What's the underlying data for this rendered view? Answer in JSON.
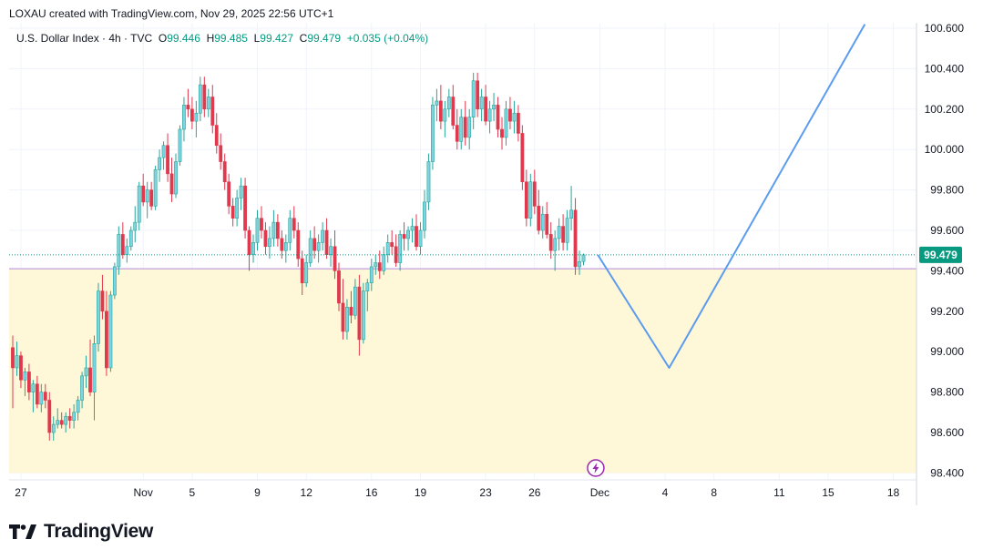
{
  "header": {
    "text": "LOXAU created with TradingView.com, Nov 29, 2025 22:56 UTC+1"
  },
  "legend": {
    "symbol": "U.S. Dollar Index · 4h · TVC",
    "o_label": "O",
    "o_value": "99.446",
    "h_label": "H",
    "h_value": "99.485",
    "l_label": "L",
    "l_value": "99.427",
    "c_label": "C",
    "c_value": "99.479",
    "change": "+0.035 (+0.04%)"
  },
  "footer": {
    "brand": "TradingView"
  },
  "colors": {
    "up": "#26a69a",
    "up_body": "#7fd3e0",
    "down": "#e0394e",
    "zone": "#fff8d8",
    "projection": "#5b9cf0",
    "zone_line": "#b187e0",
    "price_line": "#089981",
    "alert_icon": "#9c27b0"
  },
  "chart_data": {
    "type": "candlestick",
    "timeframe": "4h",
    "ylim": [
      98.35,
      100.7
    ],
    "yticks": [
      100.6,
      100.4,
      100.2,
      100.0,
      99.8,
      99.6,
      99.4,
      99.2,
      99.0,
      98.8,
      98.6,
      98.4
    ],
    "ytick_labels": [
      "100.600",
      "100.400",
      "100.200",
      "100.000",
      "99.800",
      "99.600",
      "99.400",
      "99.200",
      "99.000",
      "98.800",
      "98.600",
      "98.400"
    ],
    "xticks": [
      {
        "label": "27",
        "i": 2
      },
      {
        "label": "Nov",
        "i": 32
      },
      {
        "label": "5",
        "i": 44
      },
      {
        "label": "9",
        "i": 60
      },
      {
        "label": "12",
        "i": 72
      },
      {
        "label": "16",
        "i": 88
      },
      {
        "label": "19",
        "i": 100
      },
      {
        "label": "23",
        "i": 116
      },
      {
        "label": "26",
        "i": 128
      },
      {
        "label": "Dec",
        "i": 144
      },
      {
        "label": "4",
        "i": 160
      },
      {
        "label": "8",
        "i": 172
      },
      {
        "label": "11",
        "i": 188
      },
      {
        "label": "15",
        "i": 200
      },
      {
        "label": "18",
        "i": 216
      }
    ],
    "last_price": 99.479,
    "last_price_label": "99.479",
    "demand_zone": {
      "top": 99.41,
      "bottom": 98.4
    },
    "projection": [
      {
        "i": 143.5,
        "price": 99.479
      },
      {
        "i": 161,
        "price": 98.92
      },
      {
        "i": 209,
        "price": 100.62
      }
    ],
    "alert_icon_i": 143,
    "candles": [
      [
        99.02,
        99.08,
        98.72,
        98.92
      ],
      [
        98.92,
        99.05,
        98.88,
        98.98
      ],
      [
        98.98,
        99.0,
        98.82,
        98.86
      ],
      [
        98.86,
        98.92,
        98.78,
        98.9
      ],
      [
        98.9,
        98.94,
        98.76,
        98.8
      ],
      [
        98.8,
        98.86,
        98.7,
        98.84
      ],
      [
        98.84,
        98.88,
        98.72,
        98.74
      ],
      [
        98.74,
        98.84,
        98.7,
        98.8
      ],
      [
        98.8,
        98.84,
        98.72,
        98.76
      ],
      [
        98.76,
        98.8,
        98.56,
        98.6
      ],
      [
        98.6,
        98.68,
        98.56,
        98.64
      ],
      [
        98.64,
        98.72,
        98.62,
        98.66
      ],
      [
        98.66,
        98.7,
        98.62,
        98.64
      ],
      [
        98.64,
        98.7,
        98.6,
        98.68
      ],
      [
        98.68,
        98.72,
        98.62,
        98.66
      ],
      [
        98.66,
        98.74,
        98.62,
        98.7
      ],
      [
        98.7,
        98.78,
        98.66,
        98.76
      ],
      [
        98.76,
        98.9,
        98.72,
        98.88
      ],
      [
        98.88,
        98.98,
        98.82,
        98.92
      ],
      [
        98.92,
        99.06,
        98.78,
        98.8
      ],
      [
        98.8,
        99.08,
        98.66,
        99.04
      ],
      [
        99.04,
        99.34,
        99.0,
        99.3
      ],
      [
        99.3,
        99.38,
        99.16,
        99.2
      ],
      [
        99.2,
        99.3,
        98.88,
        98.92
      ],
      [
        98.92,
        99.3,
        98.9,
        99.28
      ],
      [
        99.28,
        99.44,
        99.26,
        99.42
      ],
      [
        99.42,
        99.62,
        99.38,
        99.58
      ],
      [
        99.58,
        99.64,
        99.46,
        99.48
      ],
      [
        99.48,
        99.56,
        99.44,
        99.52
      ],
      [
        99.52,
        99.62,
        99.5,
        99.6
      ],
      [
        99.6,
        99.72,
        99.54,
        99.64
      ],
      [
        99.64,
        99.84,
        99.6,
        99.82
      ],
      [
        99.82,
        99.88,
        99.72,
        99.74
      ],
      [
        99.74,
        99.84,
        99.66,
        99.8
      ],
      [
        99.8,
        99.84,
        99.7,
        99.72
      ],
      [
        99.72,
        99.92,
        99.7,
        99.9
      ],
      [
        99.9,
        100.0,
        99.84,
        99.96
      ],
      [
        99.96,
        100.04,
        99.9,
        100.02
      ],
      [
        100.02,
        100.08,
        99.84,
        99.88
      ],
      [
        99.88,
        99.96,
        99.74,
        99.78
      ],
      [
        99.78,
        99.98,
        99.76,
        99.94
      ],
      [
        99.94,
        100.12,
        99.92,
        100.1
      ],
      [
        100.1,
        100.26,
        100.04,
        100.22
      ],
      [
        100.22,
        100.3,
        100.16,
        100.2
      ],
      [
        100.2,
        100.26,
        100.1,
        100.14
      ],
      [
        100.14,
        100.24,
        100.06,
        100.18
      ],
      [
        100.18,
        100.36,
        100.14,
        100.32
      ],
      [
        100.32,
        100.36,
        100.16,
        100.2
      ],
      [
        100.2,
        100.3,
        100.16,
        100.26
      ],
      [
        100.26,
        100.32,
        100.08,
        100.12
      ],
      [
        100.12,
        100.18,
        99.98,
        100.02
      ],
      [
        100.02,
        100.08,
        99.9,
        99.94
      ],
      [
        99.94,
        99.98,
        99.8,
        99.84
      ],
      [
        99.84,
        99.88,
        99.68,
        99.72
      ],
      [
        99.72,
        99.76,
        99.62,
        99.66
      ],
      [
        99.66,
        99.8,
        99.62,
        99.76
      ],
      [
        99.76,
        99.86,
        99.7,
        99.82
      ],
      [
        99.82,
        99.86,
        99.56,
        99.6
      ],
      [
        99.6,
        99.62,
        99.4,
        99.48
      ],
      [
        99.48,
        99.58,
        99.44,
        99.54
      ],
      [
        99.54,
        99.7,
        99.5,
        99.66
      ],
      [
        99.66,
        99.72,
        99.56,
        99.6
      ],
      [
        99.6,
        99.64,
        99.48,
        99.52
      ],
      [
        99.52,
        99.62,
        99.46,
        99.56
      ],
      [
        99.56,
        99.7,
        99.52,
        99.64
      ],
      [
        99.64,
        99.68,
        99.52,
        99.56
      ],
      [
        99.56,
        99.6,
        99.46,
        99.5
      ],
      [
        99.5,
        99.58,
        99.44,
        99.54
      ],
      [
        99.54,
        99.7,
        99.5,
        99.66
      ],
      [
        99.66,
        99.72,
        99.56,
        99.6
      ],
      [
        99.6,
        99.64,
        99.42,
        99.46
      ],
      [
        99.46,
        99.5,
        99.28,
        99.34
      ],
      [
        99.34,
        99.48,
        99.32,
        99.44
      ],
      [
        99.44,
        99.6,
        99.42,
        99.56
      ],
      [
        99.56,
        99.62,
        99.46,
        99.5
      ],
      [
        99.5,
        99.58,
        99.44,
        99.54
      ],
      [
        99.54,
        99.64,
        99.5,
        99.6
      ],
      [
        99.6,
        99.66,
        99.46,
        99.48
      ],
      [
        99.48,
        99.56,
        99.42,
        99.52
      ],
      [
        99.52,
        99.6,
        99.36,
        99.4
      ],
      [
        99.4,
        99.44,
        99.2,
        99.24
      ],
      [
        99.24,
        99.36,
        99.06,
        99.1
      ],
      [
        99.1,
        99.26,
        99.06,
        99.22
      ],
      [
        99.22,
        99.3,
        99.14,
        99.18
      ],
      [
        99.18,
        99.36,
        99.16,
        99.32
      ],
      [
        99.32,
        99.38,
        98.98,
        99.06
      ],
      [
        99.06,
        99.34,
        99.04,
        99.3
      ],
      [
        99.3,
        99.36,
        99.2,
        99.34
      ],
      [
        99.34,
        99.46,
        99.3,
        99.42
      ],
      [
        99.42,
        99.48,
        99.38,
        99.44
      ],
      [
        99.44,
        99.5,
        99.36,
        99.4
      ],
      [
        99.4,
        99.52,
        99.38,
        99.48
      ],
      [
        99.48,
        99.58,
        99.44,
        99.54
      ],
      [
        99.54,
        99.6,
        99.48,
        99.52
      ],
      [
        99.52,
        99.58,
        99.42,
        99.44
      ],
      [
        99.44,
        99.6,
        99.4,
        99.58
      ],
      [
        99.58,
        99.64,
        99.5,
        99.56
      ],
      [
        99.56,
        99.62,
        99.5,
        99.6
      ],
      [
        99.6,
        99.66,
        99.54,
        99.62
      ],
      [
        99.62,
        99.68,
        99.5,
        99.52
      ],
      [
        99.52,
        99.64,
        99.48,
        99.6
      ],
      [
        99.6,
        99.8,
        99.56,
        99.74
      ],
      [
        99.74,
        99.98,
        99.7,
        99.94
      ],
      [
        99.94,
        100.26,
        99.9,
        100.22
      ],
      [
        100.22,
        100.3,
        100.14,
        100.24
      ],
      [
        100.24,
        100.32,
        100.1,
        100.14
      ],
      [
        100.14,
        100.24,
        100.06,
        100.2
      ],
      [
        100.2,
        100.3,
        100.16,
        100.26
      ],
      [
        100.26,
        100.32,
        100.1,
        100.12
      ],
      [
        100.12,
        100.2,
        100.0,
        100.04
      ],
      [
        100.04,
        100.2,
        100.0,
        100.16
      ],
      [
        100.16,
        100.24,
        100.02,
        100.06
      ],
      [
        100.06,
        100.2,
        100.0,
        100.16
      ],
      [
        100.16,
        100.38,
        100.1,
        100.34
      ],
      [
        100.34,
        100.38,
        100.16,
        100.2
      ],
      [
        100.2,
        100.3,
        100.14,
        100.26
      ],
      [
        100.26,
        100.32,
        100.12,
        100.14
      ],
      [
        100.14,
        100.24,
        100.08,
        100.2
      ],
      [
        100.2,
        100.28,
        100.14,
        100.22
      ],
      [
        100.22,
        100.26,
        100.06,
        100.1
      ],
      [
        100.1,
        100.16,
        100.0,
        100.06
      ],
      [
        100.06,
        100.24,
        100.02,
        100.2
      ],
      [
        100.2,
        100.26,
        100.1,
        100.14
      ],
      [
        100.14,
        100.24,
        100.08,
        100.18
      ],
      [
        100.18,
        100.22,
        100.04,
        100.08
      ],
      [
        100.08,
        100.12,
        99.8,
        99.84
      ],
      [
        99.84,
        99.9,
        99.62,
        99.66
      ],
      [
        99.66,
        99.88,
        99.62,
        99.84
      ],
      [
        99.84,
        99.9,
        99.68,
        99.72
      ],
      [
        99.72,
        99.8,
        99.58,
        99.6
      ],
      [
        99.6,
        99.72,
        99.56,
        99.68
      ],
      [
        99.68,
        99.74,
        99.56,
        99.58
      ],
      [
        99.58,
        99.64,
        99.46,
        99.5
      ],
      [
        99.5,
        99.6,
        99.4,
        99.56
      ],
      [
        99.56,
        99.66,
        99.5,
        99.62
      ],
      [
        99.62,
        99.68,
        99.5,
        99.54
      ],
      [
        99.54,
        99.7,
        99.5,
        99.66
      ],
      [
        99.66,
        99.82,
        99.6,
        99.7
      ],
      [
        99.7,
        99.76,
        99.38,
        99.42
      ],
      [
        99.42,
        99.5,
        99.38,
        99.446
      ],
      [
        99.446,
        99.485,
        99.427,
        99.479
      ]
    ]
  }
}
